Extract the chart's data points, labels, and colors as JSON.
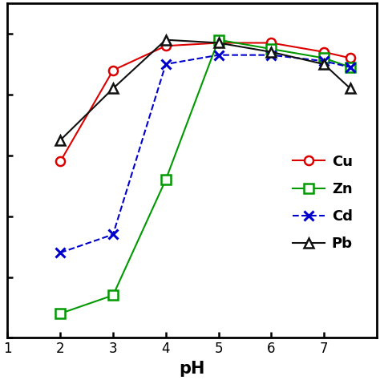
{
  "pH": [
    2,
    3,
    4,
    5,
    6,
    7,
    7.5
  ],
  "Cu": [
    58,
    88,
    96,
    97,
    97,
    94,
    92
  ],
  "Zn": [
    8,
    14,
    52,
    98,
    95,
    92,
    89
  ],
  "Cd": [
    28,
    34,
    90,
    93,
    93,
    91,
    89
  ],
  "Pb": [
    65,
    82,
    98,
    97,
    94,
    90,
    82
  ],
  "Cu_color": "#dd0000",
  "Zn_color": "#009900",
  "Cd_color": "#0000cc",
  "Pb_color": "#111111",
  "xlabel": "pH",
  "xlim": [
    1,
    8.0
  ],
  "ylim": [
    0,
    110
  ],
  "xticks": [
    1,
    2,
    3,
    4,
    5,
    6,
    7
  ],
  "legend_labels": [
    "Cu",
    "Zn",
    "Cd",
    "Pb"
  ],
  "legend_fontsize": 13,
  "xlabel_fontsize": 15,
  "tick_labelsize": 12
}
